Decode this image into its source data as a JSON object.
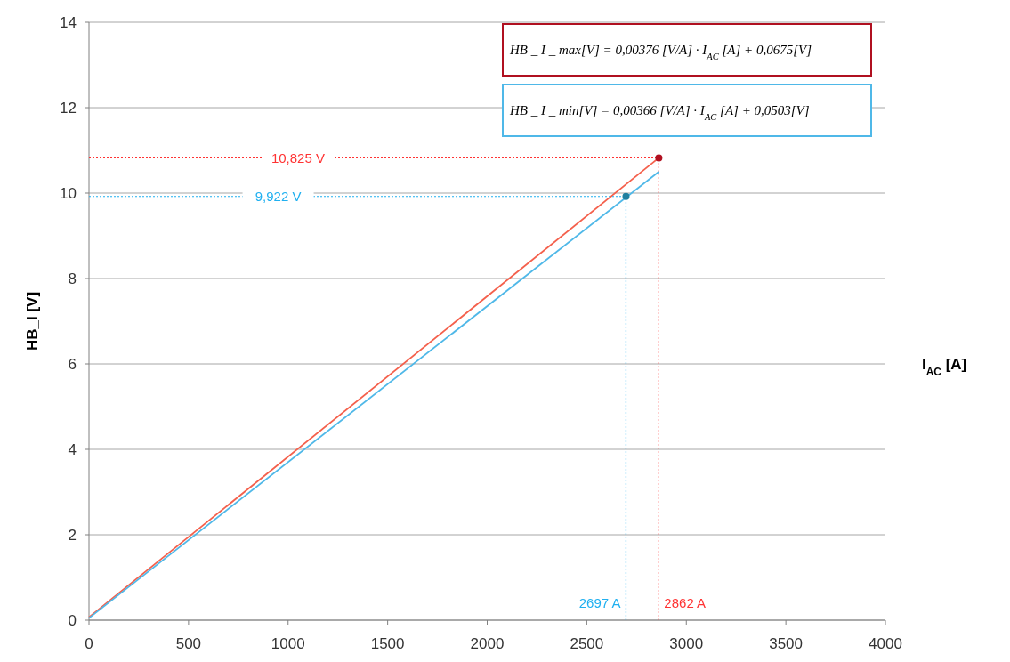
{
  "chart_data": {
    "type": "line",
    "xlabel": "I$_{AC}$ [A]",
    "ylabel": "HB_I [V]",
    "xlim": [
      0,
      4000
    ],
    "xticks": [
      0,
      500,
      1000,
      1500,
      2000,
      2500,
      3000,
      3500,
      4000
    ],
    "ylim": [
      0,
      14
    ],
    "yticks": [
      0,
      2,
      4,
      6,
      8,
      10,
      12,
      14
    ],
    "grid": "y",
    "series": [
      {
        "color": "#f4604c",
        "x": [
          0,
          2862
        ],
        "values": [
          0.07,
          10.825
        ]
      },
      {
        "color": "#4fb8e8",
        "x": [
          0,
          2862
        ],
        "values": [
          0.05,
          10.5
        ]
      },
      {
        "type": "line",
        "color": "#ff3333",
        "line_style": "dotted",
        "x": [
          0,
          2862
        ],
        "values": [
          10.825,
          10.825
        ]
      },
      {
        "type": "line",
        "color": "#ff3333",
        "line_style": "dotted",
        "x": [
          2862,
          2862
        ],
        "values": [
          0,
          10.825
        ]
      },
      {
        "type": "line",
        "color": "#20b0f0",
        "line_style": "dotted",
        "x": [
          0,
          2697
        ],
        "values": [
          9.922,
          9.922
        ]
      },
      {
        "type": "line",
        "color": "#20b0f0",
        "line_style": "dotted",
        "x": [
          2697,
          2697
        ],
        "values": [
          0,
          9.922
        ]
      },
      {
        "type": "scatter",
        "color": "#b01020",
        "marker": "circle",
        "x": [
          2862
        ],
        "values": [
          10.825
        ]
      },
      {
        "type": "scatter",
        "color": "#1f7f9f",
        "marker": "circle",
        "x": [
          2697
        ],
        "values": [
          9.922
        ]
      }
    ],
    "annotations": [
      "HB _ I _ max[V] = 0,00376 [V/A] · I$_{AC}$ [A] + 0,0675[V]",
      "HB _ I _ min[V] = 0,00366 [V/A] · I$_{AC}$ [A] + 0,0503[V]",
      {
        "text": "10,825 V",
        "x": 1050,
        "y": 10.825
      },
      {
        "text": "9,922 V",
        "x": 950,
        "y": 9.922
      },
      {
        "text": "2697 A",
        "x": 2697,
        "y": 0.3
      },
      {
        "text": "2862 A",
        "x": 2862,
        "y": 0.3
      }
    ]
  }
}
